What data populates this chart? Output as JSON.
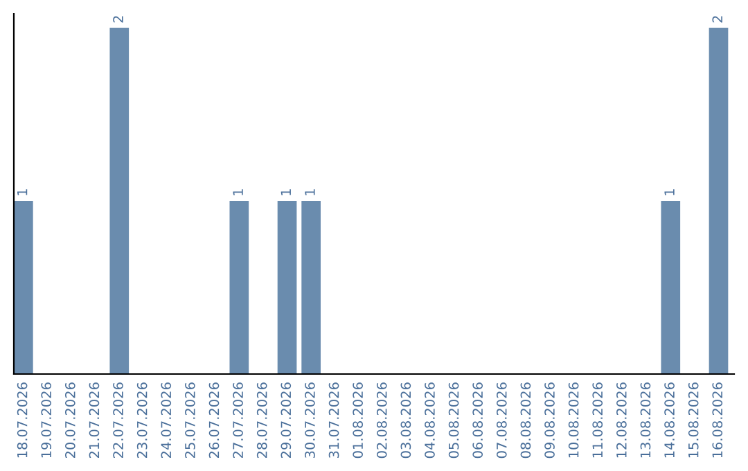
{
  "chart_data": {
    "type": "bar",
    "categories": [
      "18.07.2026",
      "19.07.2026",
      "20.07.2026",
      "21.07.2026",
      "22.07.2026",
      "23.07.2026",
      "24.07.2026",
      "25.07.2026",
      "26.07.2026",
      "27.07.2026",
      "28.07.2026",
      "29.07.2026",
      "30.07.2026",
      "31.07.2026",
      "01.08.2026",
      "02.08.2026",
      "03.08.2026",
      "04.08.2026",
      "05.08.2026",
      "06.08.2026",
      "07.08.2026",
      "08.08.2026",
      "09.08.2026",
      "10.08.2026",
      "11.08.2026",
      "12.08.2026",
      "13.08.2026",
      "14.08.2026",
      "15.08.2026",
      "16.08.2026"
    ],
    "values": [
      1,
      0,
      0,
      0,
      2,
      0,
      0,
      0,
      0,
      1,
      0,
      1,
      1,
      0,
      0,
      0,
      0,
      0,
      0,
      0,
      0,
      0,
      0,
      0,
      0,
      0,
      0,
      1,
      0,
      2
    ],
    "color": "#6a8cae",
    "ylim": [
      0,
      2.08
    ],
    "value_labels": [
      "1",
      null,
      null,
      null,
      "2",
      null,
      null,
      null,
      null,
      "1",
      null,
      "1",
      "1",
      null,
      null,
      null,
      null,
      null,
      null,
      null,
      null,
      null,
      null,
      null,
      null,
      null,
      null,
      "1",
      null,
      "2"
    ],
    "grid": false,
    "legend": false
  }
}
